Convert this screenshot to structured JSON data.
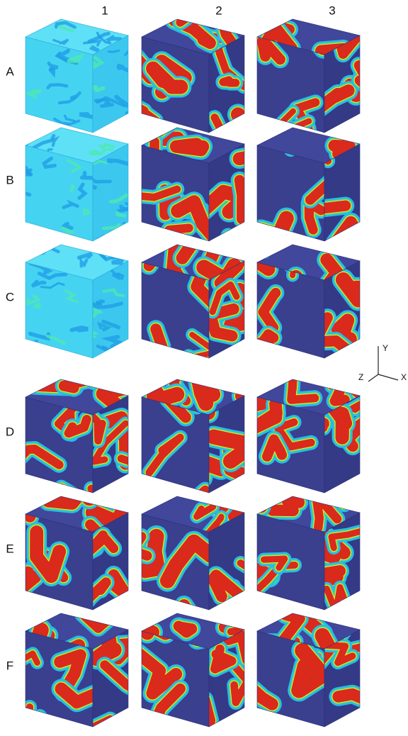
{
  "columns": [
    "1",
    "2",
    "3"
  ],
  "rows": [
    "A",
    "B",
    "C",
    "D",
    "E",
    "F"
  ],
  "axes": {
    "y": "Y",
    "z": "Z",
    "x": "X"
  }
}
